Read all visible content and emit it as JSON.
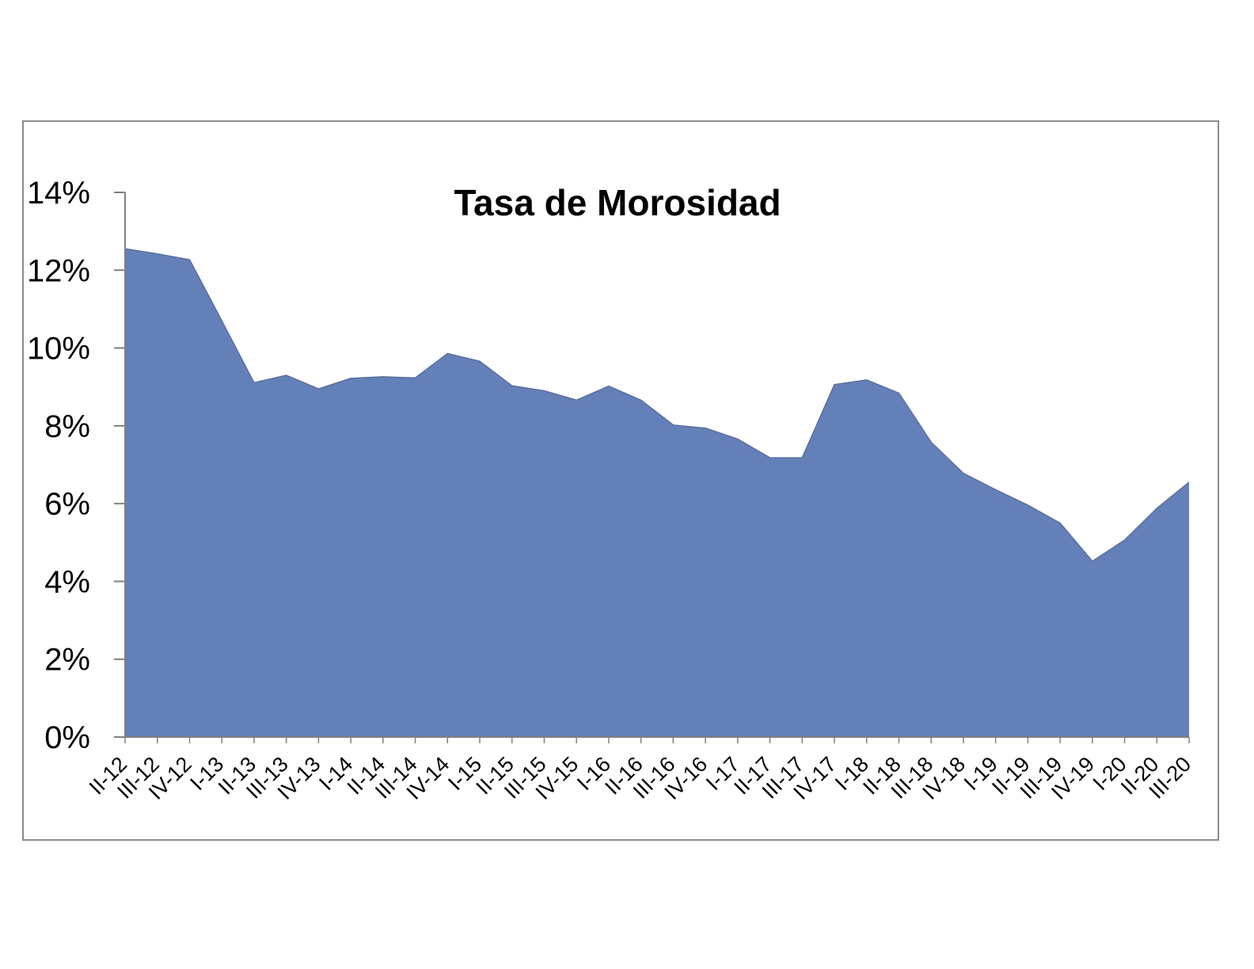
{
  "chart_data": {
    "type": "area",
    "title": "Tasa de Morosidad",
    "xlabel": "",
    "ylabel": "",
    "ylim": [
      0,
      0.14
    ],
    "yticks": [
      "0%",
      "2%",
      "4%",
      "6%",
      "8%",
      "10%",
      "12%",
      "14%"
    ],
    "grid": false,
    "legend": "none",
    "categories": [
      "II-12",
      "III-12",
      "IV-12",
      "I-13",
      "II-13",
      "III-13",
      "IV-13",
      "I-14",
      "II-14",
      "III-14",
      "IV-14",
      "I-15",
      "II-15",
      "III-15",
      "IV-15",
      "I-16",
      "II-16",
      "III-16",
      "IV-16",
      "I-17",
      "II-17",
      "III-17",
      "IV-17",
      "I-18",
      "II-18",
      "III-18",
      "IV-18",
      "I-19",
      "II-19",
      "III-19",
      "IV-19",
      "I-20",
      "II-20",
      "III-20"
    ],
    "series": [
      {
        "color": "#6480b8",
        "values": [
          0.1255,
          0.1242,
          0.1227,
          0.107,
          0.0911,
          0.093,
          0.0895,
          0.0922,
          0.0926,
          0.0923,
          0.0986,
          0.0966,
          0.0903,
          0.089,
          0.0866,
          0.0902,
          0.0866,
          0.0802,
          0.0794,
          0.0766,
          0.0718,
          0.0718,
          0.0906,
          0.0918,
          0.0884,
          0.0758,
          0.0678,
          0.0636,
          0.0596,
          0.055,
          0.0452,
          0.0506,
          0.0588,
          0.0655
        ]
      }
    ]
  }
}
